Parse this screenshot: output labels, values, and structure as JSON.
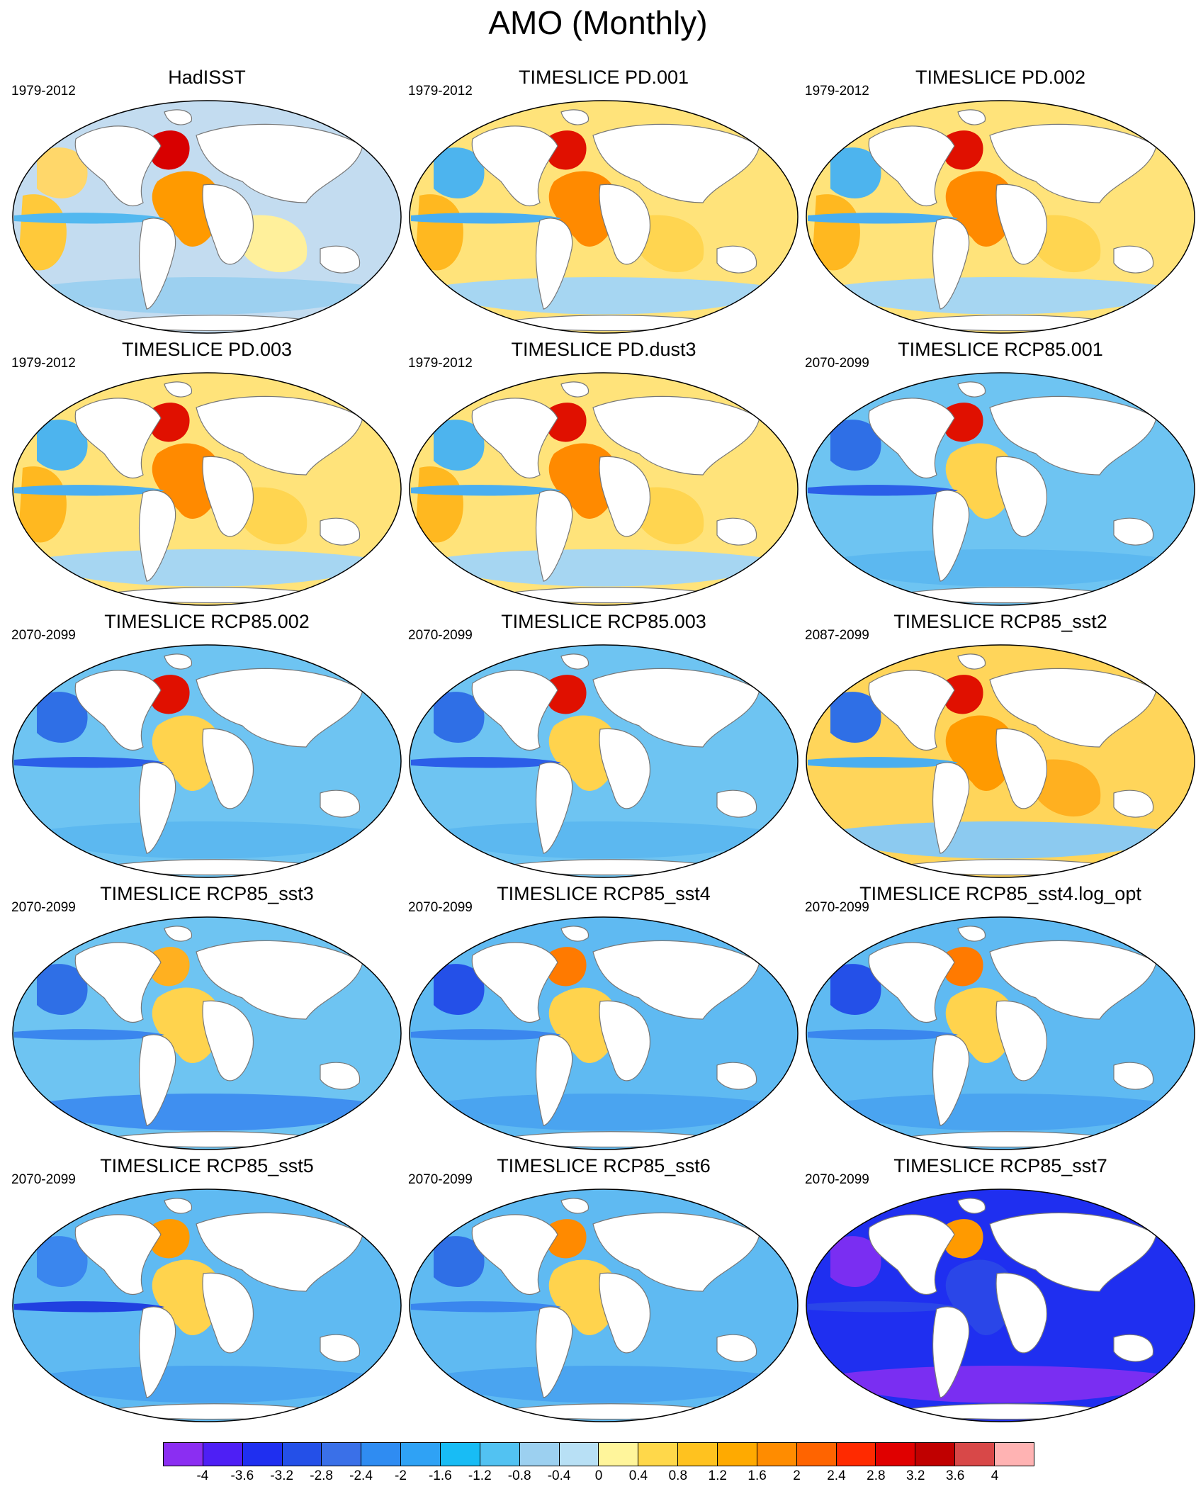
{
  "figure_title": "AMO (Monthly)",
  "panels": [
    {
      "title": "HadISST",
      "period": "1979-2012",
      "ocean": "#c3dcf0",
      "blobs": [
        [
          "atl",
          "#ff9a00"
        ],
        [
          "natl",
          "#d80000"
        ],
        [
          "pac_e",
          "#ffc93a"
        ],
        [
          "pac_w",
          "#ffd76a"
        ],
        [
          "ind",
          "#fff09b"
        ],
        [
          "south",
          "#9cd0f0"
        ],
        [
          "eqpac",
          "#52b8f0"
        ]
      ]
    },
    {
      "title": "TIMESLICE PD.001",
      "period": "1979-2012",
      "ocean": "#ffe37a",
      "blobs": [
        [
          "atl",
          "#ff8a00"
        ],
        [
          "natl",
          "#e01000"
        ],
        [
          "pac_e",
          "#ffb820"
        ],
        [
          "ind",
          "#ffd550"
        ],
        [
          "south",
          "#a6d6f2"
        ],
        [
          "pac_w",
          "#4db4ee"
        ],
        [
          "eqpac",
          "#4aaef0"
        ]
      ]
    },
    {
      "title": "TIMESLICE PD.002",
      "period": "1979-2012",
      "ocean": "#ffe37a",
      "blobs": [
        [
          "atl",
          "#ff8a00"
        ],
        [
          "natl",
          "#e01000"
        ],
        [
          "pac_e",
          "#ffb820"
        ],
        [
          "ind",
          "#ffd550"
        ],
        [
          "south",
          "#a6d6f2"
        ],
        [
          "pac_w",
          "#4db4ee"
        ],
        [
          "eqpac",
          "#4aaef0"
        ]
      ]
    },
    {
      "title": "TIMESLICE PD.003",
      "period": "1979-2012",
      "ocean": "#ffe37a",
      "blobs": [
        [
          "atl",
          "#ff8a00"
        ],
        [
          "natl",
          "#e01000"
        ],
        [
          "pac_e",
          "#ffb820"
        ],
        [
          "ind",
          "#ffd550"
        ],
        [
          "south",
          "#a6d6f2"
        ],
        [
          "pac_w",
          "#4db4ee"
        ],
        [
          "eqpac",
          "#4aaef0"
        ]
      ]
    },
    {
      "title": "TIMESLICE PD.dust3",
      "period": "1979-2012",
      "ocean": "#ffe37a",
      "blobs": [
        [
          "atl",
          "#ff8a00"
        ],
        [
          "natl",
          "#e01000"
        ],
        [
          "pac_e",
          "#ffb820"
        ],
        [
          "ind",
          "#ffd550"
        ],
        [
          "south",
          "#a6d6f2"
        ],
        [
          "pac_w",
          "#4db4ee"
        ],
        [
          "eqpac",
          "#4aaef0"
        ]
      ]
    },
    {
      "title": "TIMESLICE RCP85.001",
      "period": "2070-2099",
      "ocean": "#6ec4f2",
      "blobs": [
        [
          "natl",
          "#e01000"
        ],
        [
          "atl",
          "#ffd34d"
        ],
        [
          "pac_w",
          "#2f6fe6"
        ],
        [
          "eqpac",
          "#2b5ee8"
        ],
        [
          "south",
          "#5cb8f0"
        ]
      ]
    },
    {
      "title": "TIMESLICE RCP85.002",
      "period": "2070-2099",
      "ocean": "#6ec4f2",
      "blobs": [
        [
          "natl",
          "#e01000"
        ],
        [
          "atl",
          "#ffd34d"
        ],
        [
          "pac_w",
          "#2f6fe6"
        ],
        [
          "eqpac",
          "#2b5ee8"
        ],
        [
          "south",
          "#5cb8f0"
        ]
      ]
    },
    {
      "title": "TIMESLICE RCP85.003",
      "period": "2070-2099",
      "ocean": "#6ec4f2",
      "blobs": [
        [
          "natl",
          "#e01000"
        ],
        [
          "atl",
          "#ffd34d"
        ],
        [
          "pac_w",
          "#2f6fe6"
        ],
        [
          "eqpac",
          "#2b5ee8"
        ],
        [
          "south",
          "#5cb8f0"
        ]
      ]
    },
    {
      "title": "TIMESLICE RCP85_sst2",
      "period": "2087-2099",
      "ocean": "#ffd55a",
      "blobs": [
        [
          "natl",
          "#e01000"
        ],
        [
          "atl",
          "#ff9a00"
        ],
        [
          "ind",
          "#ffb020"
        ],
        [
          "pac_w",
          "#2f6fe6"
        ],
        [
          "eqpac",
          "#4aaef0"
        ],
        [
          "south",
          "#8ccaf0"
        ]
      ]
    },
    {
      "title": "TIMESLICE RCP85_sst3",
      "period": "2070-2099",
      "ocean": "#6ec4f2",
      "blobs": [
        [
          "atl",
          "#ffd34d"
        ],
        [
          "natl",
          "#ffb020"
        ],
        [
          "pac_w",
          "#2f6fe6"
        ],
        [
          "eqpac",
          "#3a86ee"
        ],
        [
          "south",
          "#3f8ff0"
        ]
      ]
    },
    {
      "title": "TIMESLICE RCP85_sst4",
      "period": "2070-2099",
      "ocean": "#5fbaf2",
      "blobs": [
        [
          "natl",
          "#ff7a00"
        ],
        [
          "atl",
          "#ffd34d"
        ],
        [
          "pac_w",
          "#2450e8"
        ],
        [
          "eqpac",
          "#3a86ee"
        ],
        [
          "south",
          "#4aa4f0"
        ]
      ]
    },
    {
      "title": "TIMESLICE RCP85_sst4.log_opt",
      "period": "2070-2099",
      "ocean": "#5fbaf2",
      "blobs": [
        [
          "natl",
          "#ff7a00"
        ],
        [
          "atl",
          "#ffd34d"
        ],
        [
          "pac_w",
          "#2450e8"
        ],
        [
          "eqpac",
          "#3a86ee"
        ],
        [
          "south",
          "#4aa4f0"
        ]
      ]
    },
    {
      "title": "TIMESLICE RCP85_sst5",
      "period": "2070-2099",
      "ocean": "#5fbaf2",
      "blobs": [
        [
          "natl",
          "#ff9a00"
        ],
        [
          "atl",
          "#ffd34d"
        ],
        [
          "pac_w",
          "#3a86ee"
        ],
        [
          "eqpac",
          "#2040e0"
        ],
        [
          "south",
          "#4aa4f0"
        ]
      ]
    },
    {
      "title": "TIMESLICE RCP85_sst6",
      "period": "2070-2099",
      "ocean": "#5fbaf2",
      "blobs": [
        [
          "natl",
          "#ff8a00"
        ],
        [
          "atl",
          "#ffd34d"
        ],
        [
          "pac_w",
          "#2f6fe6"
        ],
        [
          "eqpac",
          "#3a86ee"
        ],
        [
          "south",
          "#4aa4f0"
        ]
      ]
    },
    {
      "title": "TIMESLICE RCP85_sst7",
      "period": "2070-2099",
      "ocean": "#1f2ff0",
      "blobs": [
        [
          "natl",
          "#ff9a00"
        ],
        [
          "pac_w",
          "#7a2ef2"
        ],
        [
          "south",
          "#7a2ef2"
        ],
        [
          "eqpac",
          "#2a46e8"
        ],
        [
          "atl",
          "#2a46e8"
        ]
      ]
    }
  ],
  "colorbar": {
    "colors": [
      "#8b2ef2",
      "#4e1ff5",
      "#1f2ff0",
      "#2450e8",
      "#3a70e8",
      "#2f8cf2",
      "#2fa2f5",
      "#18bcf5",
      "#52c2f2",
      "#9cd0f0",
      "#b8e0f5",
      "#fff59b",
      "#ffd84a",
      "#ffc21f",
      "#ffaa00",
      "#ff8c00",
      "#ff6400",
      "#ff2a00",
      "#e00000",
      "#c00000",
      "#d84848",
      "#ffb3b3"
    ],
    "labels": [
      "-4",
      "-3.6",
      "-3.2",
      "-2.8",
      "-2.4",
      "-2",
      "-1.6",
      "-1.2",
      "-0.8",
      "-0.4",
      "0",
      "0.4",
      "0.8",
      "1.2",
      "1.6",
      "2",
      "2.4",
      "2.8",
      "3.2",
      "3.6",
      "4"
    ]
  }
}
